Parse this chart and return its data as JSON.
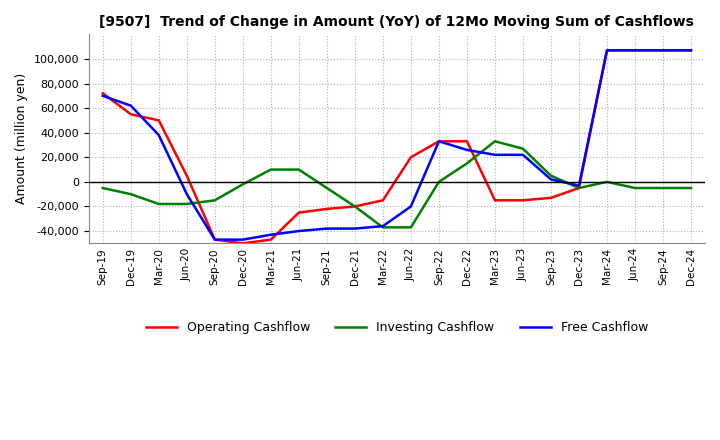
{
  "title": "[9507]  Trend of Change in Amount (YoY) of 12Mo Moving Sum of Cashflows",
  "ylabel": "Amount (million yen)",
  "x_labels": [
    "Sep-19",
    "Dec-19",
    "Mar-20",
    "Jun-20",
    "Sep-20",
    "Dec-20",
    "Mar-21",
    "Jun-21",
    "Sep-21",
    "Dec-21",
    "Mar-22",
    "Jun-22",
    "Sep-22",
    "Dec-22",
    "Mar-23",
    "Jun-23",
    "Sep-23",
    "Dec-23",
    "Mar-24",
    "Jun-24",
    "Sep-24",
    "Dec-24"
  ],
  "operating": [
    72000,
    55000,
    50000,
    5000,
    -47000,
    -50000,
    -47000,
    -25000,
    -22000,
    -20000,
    -15000,
    20000,
    33000,
    33000,
    -15000,
    -15000,
    -13000,
    -5000,
    107000,
    107000,
    107000,
    107000
  ],
  "investing": [
    -5000,
    -10000,
    -18000,
    -18000,
    -15000,
    -2000,
    10000,
    10000,
    -5000,
    -20000,
    -37000,
    -37000,
    0,
    15000,
    33000,
    27000,
    5000,
    -5000,
    0,
    -5000,
    -5000,
    -5000
  ],
  "free": [
    70000,
    62000,
    38000,
    -10000,
    -47000,
    -47000,
    -43000,
    -40000,
    -38000,
    -38000,
    -36000,
    -20000,
    33000,
    26000,
    22000,
    22000,
    2000,
    -3000,
    107000,
    107000,
    107000,
    107000
  ],
  "operating_color": "#ff0000",
  "investing_color": "#008000",
  "free_color": "#0000ff",
  "ylim": [
    -50000,
    120000
  ],
  "yticks": [
    -40000,
    -20000,
    0,
    20000,
    40000,
    60000,
    80000,
    100000
  ],
  "background_color": "#ffffff",
  "grid_color": "#b0b0b0"
}
